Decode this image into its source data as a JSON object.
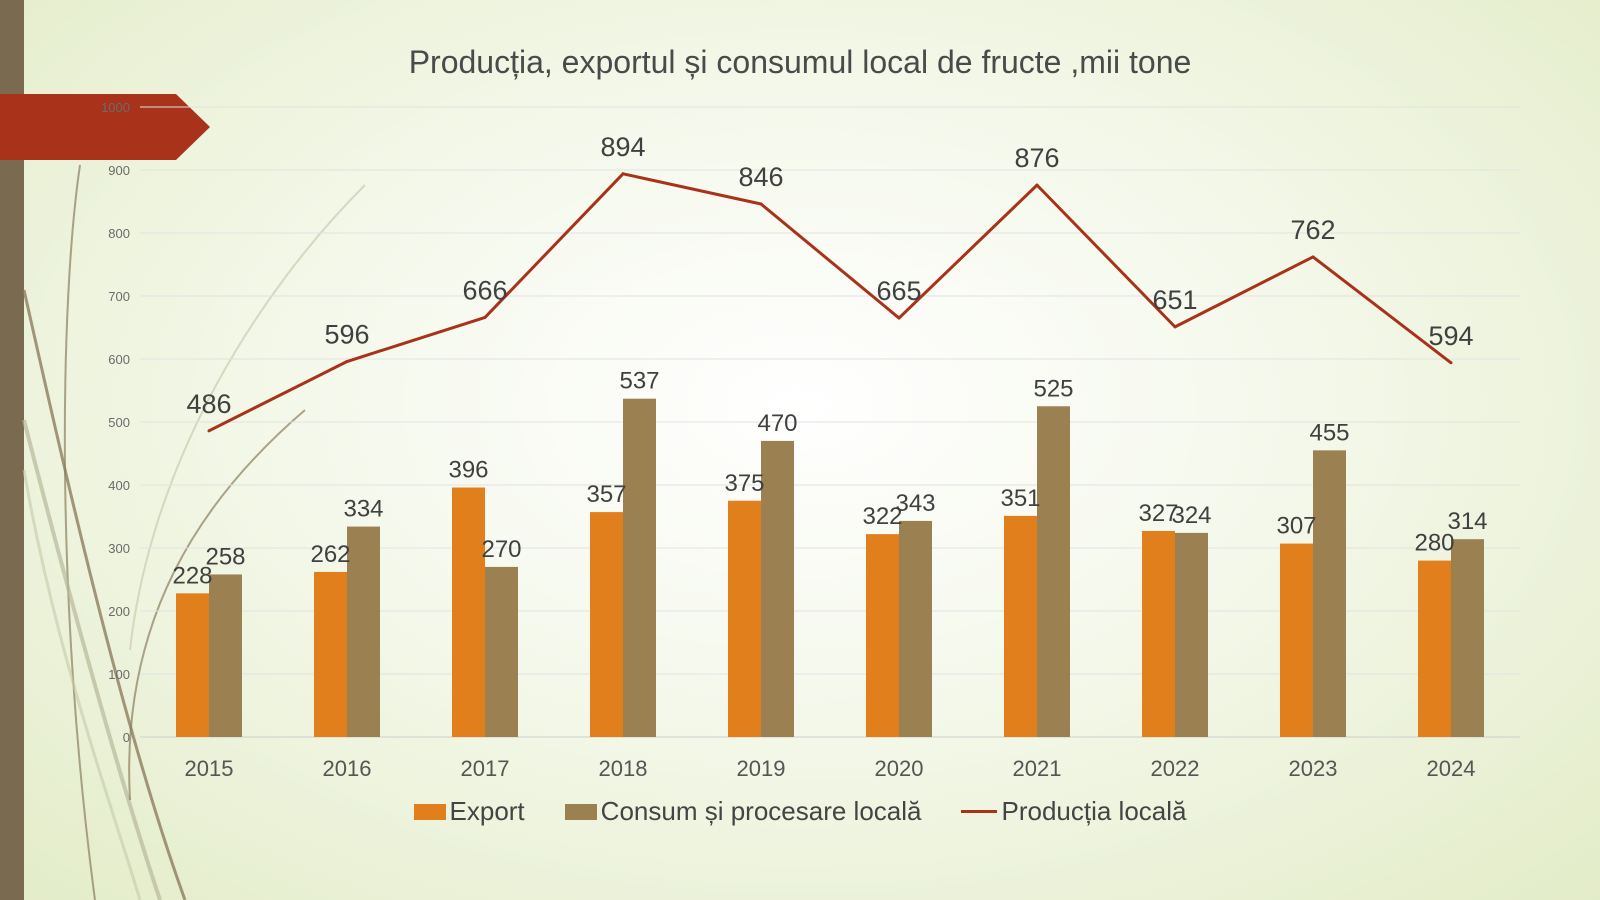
{
  "chart_data": {
    "type": "bar",
    "title": "Producția, exportul și consumul local de fructe ,mii tone",
    "categories": [
      "2015",
      "2016",
      "2017",
      "2018",
      "2019",
      "2020",
      "2021",
      "2022",
      "2023",
      "2024"
    ],
    "series": [
      {
        "name": "Export",
        "type": "bar",
        "color": "#e07f1c",
        "values": [
          228,
          262,
          396,
          357,
          375,
          322,
          351,
          327,
          307,
          280
        ]
      },
      {
        "name": "Consum și procesare locală",
        "type": "bar",
        "color": "#9b8152",
        "values": [
          258,
          334,
          270,
          537,
          470,
          343,
          525,
          324,
          455,
          314
        ]
      },
      {
        "name": "Producția locală",
        "type": "line",
        "color": "#a8321a",
        "values": [
          486,
          596,
          666,
          894,
          846,
          665,
          876,
          651,
          762,
          594
        ]
      }
    ],
    "ylim": [
      0,
      1000
    ],
    "yticks": [
      0,
      100,
      200,
      300,
      400,
      500,
      600,
      700,
      800,
      900,
      1000
    ],
    "grid": true,
    "legend": "bottom"
  },
  "colors": {
    "accent": "#a8321a",
    "strip": "#7a6a4f",
    "background": "#f4f8ea"
  }
}
